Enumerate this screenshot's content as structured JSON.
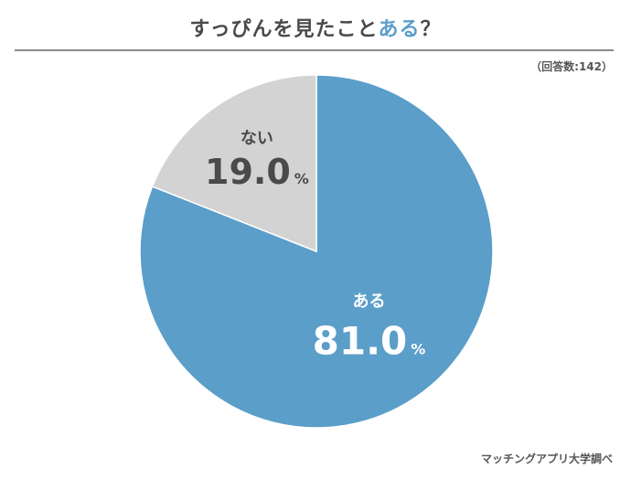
{
  "header": {
    "title_main": "すっぴんを見たこと",
    "title_accent": "ある",
    "title_end": "？",
    "respondents": "（回答数:142）"
  },
  "footer": {
    "source": "マッチングアプリ大学調べ"
  },
  "chart_data": {
    "type": "pie",
    "title": "すっぴんを見たことある？",
    "total_respondents": 142,
    "slices": [
      {
        "label": "ある",
        "value": 81.0,
        "value_text": "81.0",
        "unit": "%",
        "color": "#5b9ec9",
        "text_color": "#ffffff"
      },
      {
        "label": "ない",
        "value": 19.0,
        "value_text": "19.0",
        "unit": "%",
        "color": "#d4d3d3",
        "text_color": "#4a4a4a"
      }
    ],
    "start_angle_deg": 0,
    "direction": "clockwise",
    "border_color": "#ffffff"
  }
}
